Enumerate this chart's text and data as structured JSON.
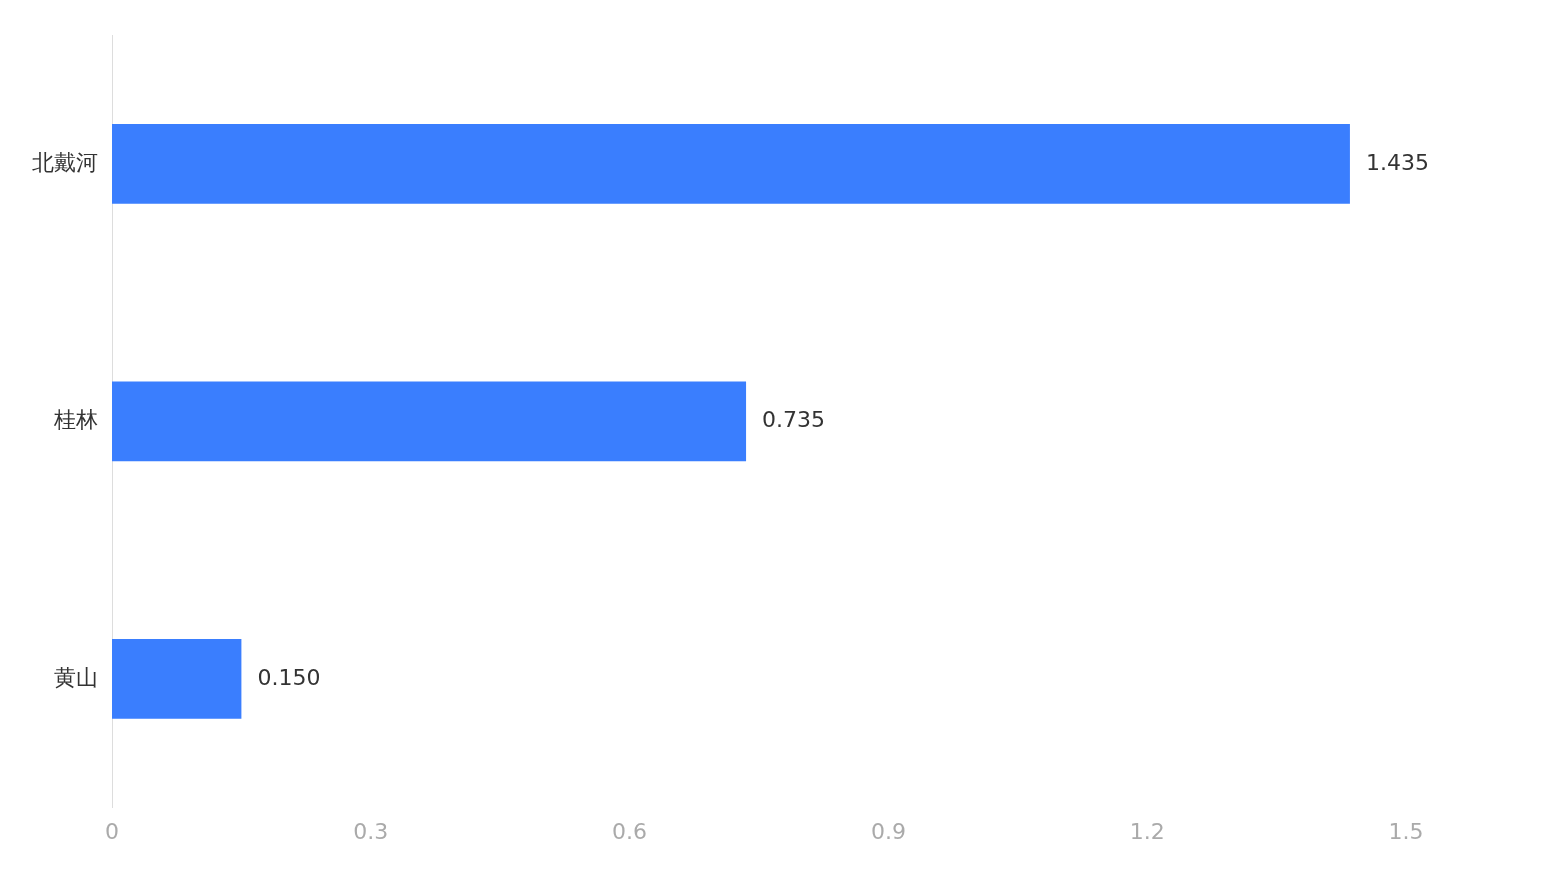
{
  "chart_data": {
    "type": "bar",
    "orientation": "horizontal",
    "categories": [
      "北戴河",
      "桂林",
      "黄山"
    ],
    "values": [
      1.435,
      0.735,
      0.15
    ],
    "value_labels": [
      "1.435",
      "0.735",
      "0.150"
    ],
    "color": "#3a7efe",
    "xlim": [
      0,
      1.5
    ],
    "xticks": [
      0,
      0.3,
      0.6,
      0.9,
      1.2,
      1.5
    ],
    "grid": false,
    "legend": false
  }
}
